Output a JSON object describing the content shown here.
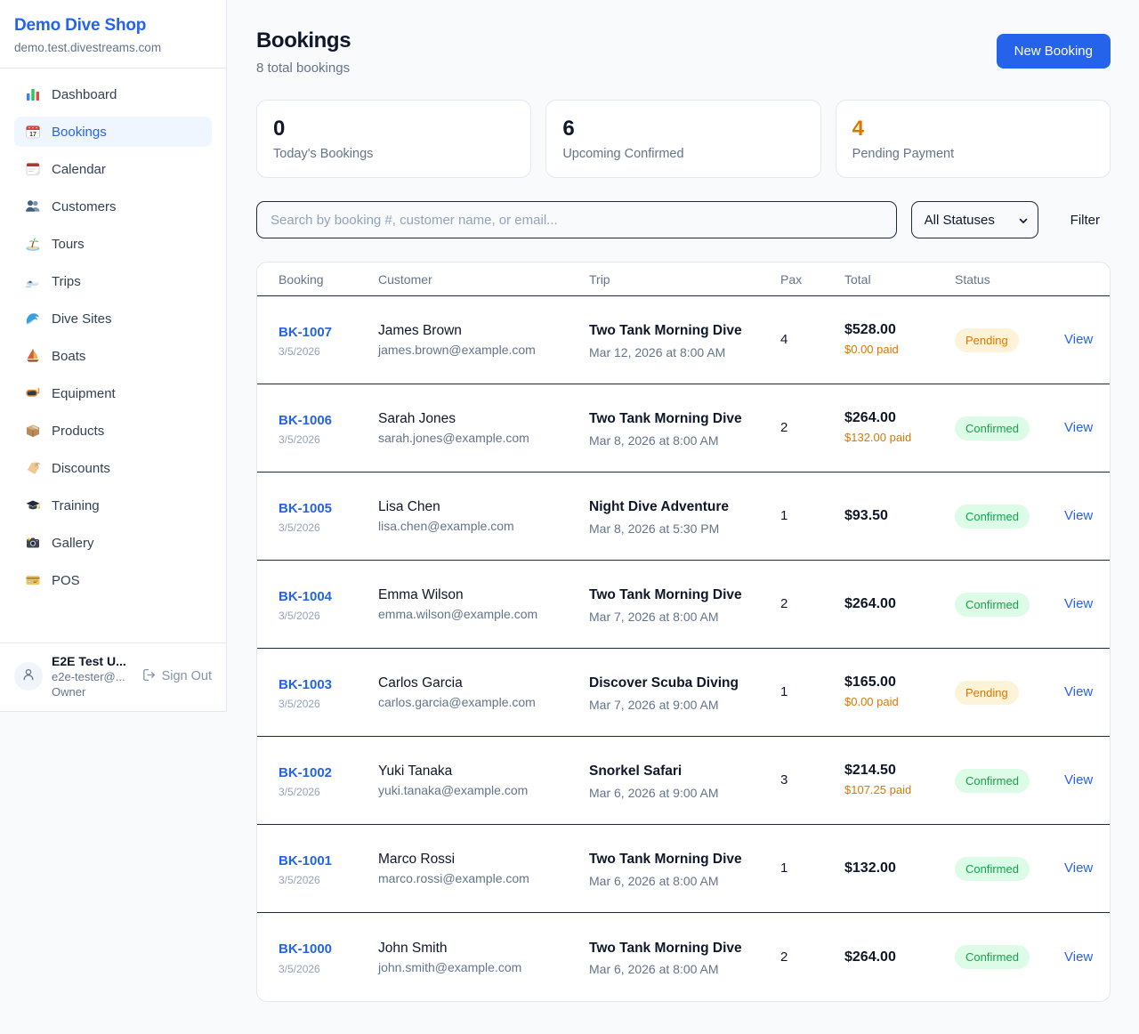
{
  "colors": {
    "accent_blue": "#2563eb",
    "page_background": "#f8fafc",
    "pending_orange": "#d97706",
    "confirmed_green": "#16a34a",
    "border_light": "#e2e8f0",
    "divider_dark": "#1e293b"
  },
  "sidebar": {
    "shop_name": "Demo Dive Shop",
    "domain": "demo.test.divestreams.com",
    "nav": [
      {
        "label": "Dashboard",
        "icon": "bar-chart-icon",
        "active": false
      },
      {
        "label": "Bookings",
        "icon": "calendar-date-icon",
        "active": true
      },
      {
        "label": "Calendar",
        "icon": "calendar-page-icon",
        "active": false
      },
      {
        "label": "Customers",
        "icon": "people-icon",
        "active": false
      },
      {
        "label": "Tours",
        "icon": "island-icon",
        "active": false
      },
      {
        "label": "Trips",
        "icon": "speedboat-icon",
        "active": false
      },
      {
        "label": "Dive Sites",
        "icon": "wave-icon",
        "active": false
      },
      {
        "label": "Boats",
        "icon": "sailboat-icon",
        "active": false
      },
      {
        "label": "Equipment",
        "icon": "diving-mask-icon",
        "active": false
      },
      {
        "label": "Products",
        "icon": "package-icon",
        "active": false
      },
      {
        "label": "Discounts",
        "icon": "tag-icon",
        "active": false
      },
      {
        "label": "Training",
        "icon": "graduation-cap-icon",
        "active": false
      },
      {
        "label": "Gallery",
        "icon": "camera-icon",
        "active": false
      },
      {
        "label": "POS",
        "icon": "credit-card-icon",
        "active": false
      }
    ],
    "user": {
      "name": "E2E Test U...",
      "email": "e2e-tester@...",
      "role": "Owner",
      "sign_out_label": "Sign Out"
    }
  },
  "header": {
    "title": "Bookings",
    "subtitle": "8 total bookings",
    "new_booking_label": "New Booking"
  },
  "stats": [
    {
      "value": "0",
      "label": "Today's Bookings",
      "color": "#0f172a"
    },
    {
      "value": "6",
      "label": "Upcoming Confirmed",
      "color": "#0f172a"
    },
    {
      "value": "4",
      "label": "Pending Payment",
      "color": "#d97706"
    }
  ],
  "filters": {
    "search_placeholder": "Search by booking #, customer name, or email...",
    "status_selected": "All Statuses",
    "filter_label": "Filter"
  },
  "table": {
    "columns": [
      "Booking",
      "Customer",
      "Trip",
      "Pax",
      "Total",
      "Status"
    ],
    "status_styles": {
      "Pending": {
        "color": "#d97706",
        "bg": "#fdf3d8"
      },
      "Confirmed": {
        "color": "#16a34a",
        "bg": "#dcfce7"
      }
    },
    "rows": [
      {
        "id": "BK-1007",
        "date": "3/5/2026",
        "customer": "James Brown",
        "email": "james.brown@example.com",
        "trip": "Two Tank Morning Dive",
        "trip_time": "Mar 12, 2026 at 8:00 AM",
        "pax": "4",
        "total": "$528.00",
        "paid": "$0.00 paid",
        "status": "Pending",
        "action": "View"
      },
      {
        "id": "BK-1006",
        "date": "3/5/2026",
        "customer": "Sarah Jones",
        "email": "sarah.jones@example.com",
        "trip": "Two Tank Morning Dive",
        "trip_time": "Mar 8, 2026 at 8:00 AM",
        "pax": "2",
        "total": "$264.00",
        "paid": "$132.00 paid",
        "status": "Confirmed",
        "action": "View"
      },
      {
        "id": "BK-1005",
        "date": "3/5/2026",
        "customer": "Lisa Chen",
        "email": "lisa.chen@example.com",
        "trip": "Night Dive Adventure",
        "trip_time": "Mar 8, 2026 at 5:30 PM",
        "pax": "1",
        "total": "$93.50",
        "paid": null,
        "status": "Confirmed",
        "action": "View"
      },
      {
        "id": "BK-1004",
        "date": "3/5/2026",
        "customer": "Emma Wilson",
        "email": "emma.wilson@example.com",
        "trip": "Two Tank Morning Dive",
        "trip_time": "Mar 7, 2026 at 8:00 AM",
        "pax": "2",
        "total": "$264.00",
        "paid": null,
        "status": "Confirmed",
        "action": "View"
      },
      {
        "id": "BK-1003",
        "date": "3/5/2026",
        "customer": "Carlos Garcia",
        "email": "carlos.garcia@example.com",
        "trip": "Discover Scuba Diving",
        "trip_time": "Mar 7, 2026 at 9:00 AM",
        "pax": "1",
        "total": "$165.00",
        "paid": "$0.00 paid",
        "status": "Pending",
        "action": "View"
      },
      {
        "id": "BK-1002",
        "date": "3/5/2026",
        "customer": "Yuki Tanaka",
        "email": "yuki.tanaka@example.com",
        "trip": "Snorkel Safari",
        "trip_time": "Mar 6, 2026 at 9:00 AM",
        "pax": "3",
        "total": "$214.50",
        "paid": "$107.25 paid",
        "status": "Confirmed",
        "action": "View"
      },
      {
        "id": "BK-1001",
        "date": "3/5/2026",
        "customer": "Marco Rossi",
        "email": "marco.rossi@example.com",
        "trip": "Two Tank Morning Dive",
        "trip_time": "Mar 6, 2026 at 8:00 AM",
        "pax": "1",
        "total": "$132.00",
        "paid": null,
        "status": "Confirmed",
        "action": "View"
      },
      {
        "id": "BK-1000",
        "date": "3/5/2026",
        "customer": "John Smith",
        "email": "john.smith@example.com",
        "trip": "Two Tank Morning Dive",
        "trip_time": "Mar 6, 2026 at 8:00 AM",
        "pax": "2",
        "total": "$264.00",
        "paid": null,
        "status": "Confirmed",
        "action": "View"
      }
    ]
  }
}
